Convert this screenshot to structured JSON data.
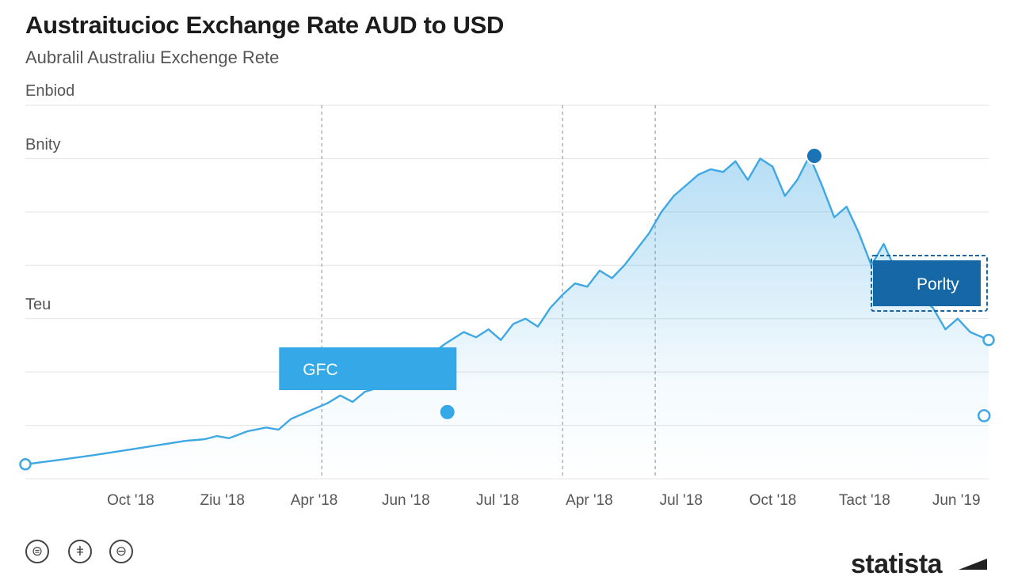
{
  "chart_data": {
    "type": "area",
    "title": "Austraitucioc Exchange Rate AUD to USD",
    "subtitle": "Aubralil Australiu Exchenge Rete",
    "y_labels": [
      {
        "label": "Enbiod",
        "value": 1.0
      },
      {
        "label": "Bnity",
        "value": 0.9
      },
      {
        "label": "Teu",
        "value": 0.6
      }
    ],
    "ylim": [
      0.3,
      1.0
    ],
    "grid": true,
    "categories": [
      "Oct '18",
      "Ziu '18",
      "Apr '18",
      "Jun '18",
      "Jul '18",
      "Apr '18",
      "Jul '18",
      "Oct '18",
      "Tact '18",
      "Jun '19"
    ],
    "x": [
      0.5,
      1.5,
      2.5,
      3.5,
      4.5,
      5.5,
      6.5,
      7.5,
      8.5,
      9.5
    ],
    "xlim": [
      -0.1,
      10.5
    ],
    "series": [
      {
        "values": [
          [
            -0.1,
            0.327
          ],
          [
            0.5,
            0.336
          ],
          [
            1.0,
            0.344
          ],
          [
            1.5,
            0.353
          ],
          [
            2.0,
            0.362
          ],
          [
            2.5,
            0.371
          ],
          [
            2.8,
            0.374
          ],
          [
            3.0,
            0.38
          ],
          [
            3.2,
            0.376
          ],
          [
            3.5,
            0.389
          ],
          [
            3.8,
            0.396
          ],
          [
            4.0,
            0.392
          ],
          [
            4.2,
            0.412
          ],
          [
            4.5,
            0.427
          ],
          [
            4.8,
            0.442
          ],
          [
            5.0,
            0.456
          ],
          [
            5.2,
            0.444
          ],
          [
            5.4,
            0.463
          ],
          [
            5.6,
            0.47
          ],
          [
            5.8,
            0.485
          ],
          [
            6.0,
            0.495
          ],
          [
            6.2,
            0.51
          ],
          [
            6.5,
            0.536
          ],
          [
            6.7,
            0.553
          ],
          [
            7.0,
            0.575
          ],
          [
            7.2,
            0.565
          ],
          [
            7.4,
            0.58
          ],
          [
            7.6,
            0.56
          ],
          [
            7.8,
            0.59
          ],
          [
            8.0,
            0.6
          ],
          [
            8.2,
            0.585
          ],
          [
            8.4,
            0.62
          ],
          [
            8.6,
            0.645
          ],
          [
            8.8,
            0.666
          ],
          [
            9.0,
            0.66
          ],
          [
            9.2,
            0.69
          ],
          [
            9.4,
            0.676
          ],
          [
            9.6,
            0.7
          ],
          [
            9.8,
            0.73
          ],
          [
            10.0,
            0.76
          ],
          [
            10.2,
            0.8
          ],
          [
            10.4,
            0.83
          ],
          [
            10.6,
            0.85
          ],
          [
            10.8,
            0.87
          ],
          [
            11.0,
            0.88
          ],
          [
            11.2,
            0.875
          ],
          [
            11.4,
            0.895
          ],
          [
            11.6,
            0.86
          ],
          [
            11.8,
            0.9
          ],
          [
            12.0,
            0.885
          ],
          [
            12.2,
            0.83
          ],
          [
            12.4,
            0.86
          ],
          [
            12.6,
            0.905
          ],
          [
            12.8,
            0.85
          ],
          [
            13.0,
            0.79
          ],
          [
            13.2,
            0.81
          ],
          [
            13.4,
            0.76
          ],
          [
            13.6,
            0.7
          ],
          [
            13.8,
            0.74
          ],
          [
            14.0,
            0.69
          ],
          [
            14.2,
            0.66
          ],
          [
            14.4,
            0.64
          ],
          [
            14.6,
            0.62
          ],
          [
            14.8,
            0.58
          ],
          [
            15.0,
            0.6
          ],
          [
            15.2,
            0.575
          ],
          [
            15.5,
            0.56
          ]
        ]
      }
    ],
    "markers": [
      {
        "x": 4.6,
        "y": 0.425,
        "style": "filled"
      },
      {
        "x": 8.6,
        "y": 0.905,
        "style": "filled"
      },
      {
        "x": 9.7,
        "y": 0.69,
        "style": "hollow"
      },
      {
        "x": 10.45,
        "y": 0.418,
        "style": "hollow"
      }
    ],
    "annotations": [
      {
        "label": "GFC",
        "x": 4.7,
        "style": "solid-light"
      },
      {
        "label": "Porlty",
        "x": 9.5,
        "style": "dashed-dark"
      }
    ],
    "vlines": [
      4.7,
      8.6,
      10.1
    ]
  },
  "colors": {
    "line": "#3fa8e4",
    "marker_dark": "#1a73b5",
    "grid": "#e3e3e3",
    "annotation_light": "#35a9e8",
    "annotation_dark": "#1667a6"
  },
  "footer": {
    "icons": [
      "license-icon",
      "info-icon",
      "equals-icon"
    ],
    "brand": "statista"
  }
}
